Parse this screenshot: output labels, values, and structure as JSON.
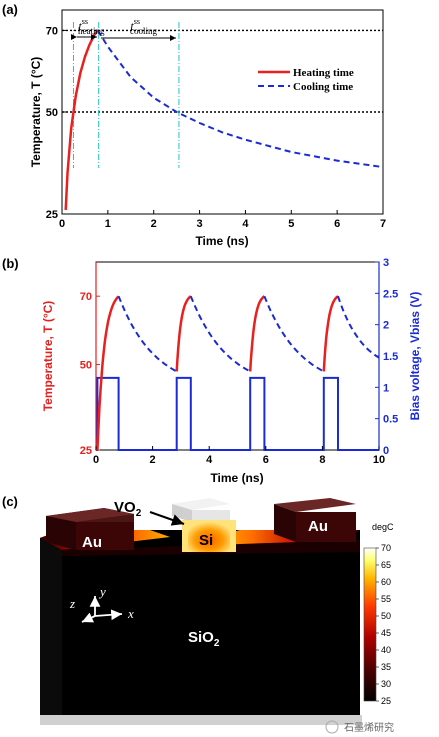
{
  "chart_data": [
    {
      "panel": "(a)",
      "type": "line",
      "xlabel": "Time (ns)",
      "ylabel": "Temperature, T (°C)",
      "xlim": [
        0,
        7
      ],
      "ylim": [
        25,
        75
      ],
      "xticks": [
        "0",
        "1",
        "2",
        "3",
        "4",
        "5",
        "6",
        "7"
      ],
      "yticks": [
        "25",
        "50",
        "70"
      ],
      "reference_lines_y": [
        50,
        70
      ],
      "legend_position": "upper-right",
      "annotations": [
        "t^ss_heating",
        "t^ss_cooling"
      ],
      "t_ss_heating_ns": [
        0.25,
        0.8
      ],
      "t_ss_cooling_ns": [
        0.8,
        2.55
      ],
      "series": [
        {
          "name": "Heating time",
          "style": "solid",
          "color": "#e8201e",
          "x": [
            0.08,
            0.12,
            0.2,
            0.3,
            0.4,
            0.5,
            0.6,
            0.7,
            0.78
          ],
          "y": [
            26,
            35,
            46,
            54,
            59.5,
            63.5,
            66.5,
            68.8,
            70
          ]
        },
        {
          "name": "Cooling time",
          "style": "dashed",
          "color": "#1a2bd6",
          "x": [
            0.78,
            1.0,
            1.5,
            2.0,
            2.5,
            3.0,
            3.5,
            4.0,
            5.0,
            6.0,
            7.0
          ],
          "y": [
            70,
            66,
            58.5,
            53.5,
            50,
            47.3,
            45,
            43.2,
            40.2,
            38.1,
            36.5
          ]
        }
      ]
    },
    {
      "panel": "(b)",
      "type": "line",
      "xlabel": "Time (ns)",
      "ylabel_left": "Temperature, T (°C)",
      "ylabel_right": "Bias voltage, Vbias (V)",
      "xlim": [
        0,
        10
      ],
      "ylim_left": [
        25,
        80
      ],
      "ylim_right": [
        0,
        3
      ],
      "xticks": [
        "0",
        "2",
        "4",
        "6",
        "8",
        "10"
      ],
      "yticks_left": [
        "25",
        "50",
        "70"
      ],
      "yticks_right": [
        "0",
        "0.5",
        "1",
        "1.5",
        "2",
        "2.5",
        "3"
      ],
      "pulse_high_V": 1.15,
      "pulses_ns": [
        [
          0.05,
          0.8
        ],
        [
          2.85,
          3.35
        ],
        [
          5.45,
          5.95
        ],
        [
          8.05,
          8.55
        ]
      ],
      "temperature_range_C": [
        48,
        70
      ],
      "series": [
        {
          "name": "Heating",
          "style": "solid",
          "color": "#e8201e"
        },
        {
          "name": "Cooling",
          "style": "dashed",
          "color": "#1a2bd6"
        },
        {
          "name": "Bias voltage",
          "style": "solid",
          "color": "#1a2bd6"
        }
      ]
    },
    {
      "panel": "(c)",
      "type": "heatmap",
      "labels": {
        "vo2": "VO",
        "vo2_sub": "2",
        "au_left": "Au",
        "au_right": "Au",
        "si": "Si",
        "sio2": "SiO",
        "sio2_sub": "2"
      },
      "axes_labels": {
        "y": "y",
        "z": "z",
        "x": "x"
      },
      "colorbar": {
        "title": "degC",
        "ticks": [
          "25",
          "30",
          "35",
          "40",
          "45",
          "50",
          "55",
          "60",
          "65",
          "70"
        ],
        "min": 25,
        "max": 70
      }
    }
  ],
  "watermark": "石墨烯研究"
}
